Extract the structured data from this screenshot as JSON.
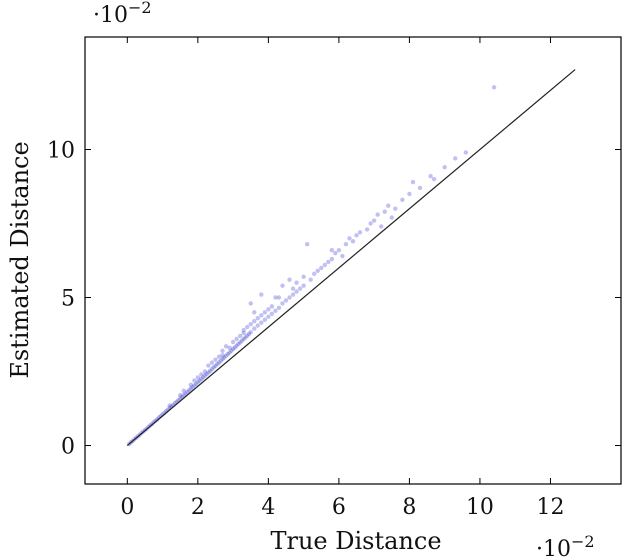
{
  "chart_data": {
    "type": "scatter",
    "xlabel": "True Distance",
    "ylabel": "Estimated Distance",
    "x_scale_label": "·10",
    "y_scale_label": "·10",
    "scale_exponent": "−2",
    "xlim": [
      -1.2,
      14.0
    ],
    "ylim": [
      -1.3,
      13.8
    ],
    "x_ticks": [
      0,
      2,
      4,
      6,
      8,
      10,
      12
    ],
    "y_ticks": [
      0,
      5,
      10
    ],
    "grid": false,
    "colors": {
      "points": "#2222cc",
      "reference_line": "#222222",
      "axes": "#000000"
    },
    "reference_line": {
      "x": [
        0,
        12.7
      ],
      "y": [
        0,
        12.7
      ]
    },
    "series": [
      {
        "values": [
          [
            0.05,
            0.05
          ],
          [
            0.1,
            0.11
          ],
          [
            0.15,
            0.15
          ],
          [
            0.2,
            0.21
          ],
          [
            0.25,
            0.26
          ],
          [
            0.3,
            0.31
          ],
          [
            0.35,
            0.36
          ],
          [
            0.4,
            0.42
          ],
          [
            0.45,
            0.47
          ],
          [
            0.5,
            0.52
          ],
          [
            0.55,
            0.57
          ],
          [
            0.6,
            0.63
          ],
          [
            0.65,
            0.68
          ],
          [
            0.7,
            0.73
          ],
          [
            0.75,
            0.79
          ],
          [
            0.8,
            0.84
          ],
          [
            0.85,
            0.89
          ],
          [
            0.9,
            0.95
          ],
          [
            0.95,
            1.0
          ],
          [
            1.0,
            1.05
          ],
          [
            1.05,
            1.1
          ],
          [
            1.1,
            1.16
          ],
          [
            1.15,
            1.21
          ],
          [
            1.2,
            1.27
          ],
          [
            1.25,
            1.32
          ],
          [
            1.3,
            1.37
          ],
          [
            1.35,
            1.43
          ],
          [
            1.4,
            1.48
          ],
          [
            1.45,
            1.53
          ],
          [
            1.5,
            1.59
          ],
          [
            1.55,
            1.64
          ],
          [
            1.6,
            1.7
          ],
          [
            1.65,
            1.75
          ],
          [
            1.7,
            1.81
          ],
          [
            1.75,
            1.86
          ],
          [
            1.8,
            1.92
          ],
          [
            1.85,
            1.97
          ],
          [
            1.9,
            2.03
          ],
          [
            1.95,
            2.08
          ],
          [
            2.0,
            2.14
          ],
          [
            2.05,
            2.19
          ],
          [
            2.1,
            2.25
          ],
          [
            2.15,
            2.3
          ],
          [
            2.2,
            2.36
          ],
          [
            2.25,
            2.41
          ],
          [
            2.3,
            2.47
          ],
          [
            2.35,
            2.52
          ],
          [
            2.4,
            2.58
          ],
          [
            2.45,
            2.64
          ],
          [
            2.5,
            2.69
          ],
          [
            2.55,
            2.75
          ],
          [
            2.6,
            2.8
          ],
          [
            2.65,
            2.86
          ],
          [
            2.7,
            2.92
          ],
          [
            2.75,
            2.97
          ],
          [
            2.8,
            3.03
          ],
          [
            2.85,
            3.09
          ],
          [
            2.9,
            3.14
          ],
          [
            2.95,
            3.2
          ],
          [
            3.0,
            3.26
          ],
          [
            3.05,
            3.31
          ],
          [
            3.1,
            3.37
          ],
          [
            3.15,
            3.43
          ],
          [
            3.2,
            3.48
          ],
          [
            3.25,
            3.54
          ],
          [
            3.3,
            3.6
          ],
          [
            3.35,
            3.65
          ],
          [
            3.4,
            3.71
          ],
          [
            3.45,
            3.77
          ],
          [
            3.5,
            3.83
          ],
          [
            1.2,
            1.35
          ],
          [
            1.5,
            1.7
          ],
          [
            1.8,
            2.05
          ],
          [
            2.1,
            2.4
          ],
          [
            2.3,
            2.7
          ],
          [
            2.5,
            2.9
          ],
          [
            2.7,
            3.2
          ],
          [
            2.8,
            3.35
          ],
          [
            3.0,
            3.5
          ],
          [
            3.2,
            3.7
          ],
          [
            3.4,
            4.0
          ],
          [
            3.5,
            4.1
          ],
          [
            3.6,
            4.2
          ],
          [
            3.7,
            4.3
          ],
          [
            3.8,
            4.4
          ],
          [
            3.9,
            4.5
          ],
          [
            4.0,
            4.6
          ],
          [
            4.1,
            4.7
          ],
          [
            3.6,
            3.95
          ],
          [
            3.7,
            4.05
          ],
          [
            3.8,
            4.15
          ],
          [
            3.9,
            4.25
          ],
          [
            4.0,
            4.35
          ],
          [
            4.1,
            4.45
          ],
          [
            4.2,
            4.55
          ],
          [
            4.3,
            4.65
          ],
          [
            4.4,
            4.8
          ],
          [
            4.5,
            4.9
          ],
          [
            4.6,
            5.0
          ],
          [
            4.7,
            5.1
          ],
          [
            4.8,
            5.2
          ],
          [
            4.9,
            5.3
          ],
          [
            5.0,
            5.4
          ],
          [
            3.5,
            4.8
          ],
          [
            3.8,
            5.1
          ],
          [
            4.2,
            5.0
          ],
          [
            4.4,
            5.4
          ],
          [
            4.6,
            5.6
          ],
          [
            4.8,
            5.5
          ],
          [
            5.0,
            5.7
          ],
          [
            5.1,
            6.8
          ],
          [
            5.2,
            5.6
          ],
          [
            5.4,
            5.9
          ],
          [
            5.5,
            6.0
          ],
          [
            5.6,
            6.1
          ],
          [
            5.7,
            6.2
          ],
          [
            5.8,
            6.3
          ],
          [
            5.9,
            6.5
          ],
          [
            6.0,
            6.6
          ],
          [
            6.1,
            6.4
          ],
          [
            6.2,
            6.8
          ],
          [
            6.3,
            7.0
          ],
          [
            6.4,
            6.9
          ],
          [
            6.5,
            7.1
          ],
          [
            6.6,
            7.2
          ],
          [
            6.8,
            7.3
          ],
          [
            6.9,
            7.5
          ],
          [
            7.0,
            7.6
          ],
          [
            7.1,
            7.8
          ],
          [
            7.2,
            7.4
          ],
          [
            7.3,
            7.9
          ],
          [
            7.4,
            8.1
          ],
          [
            7.5,
            7.7
          ],
          [
            7.6,
            8.0
          ],
          [
            7.8,
            8.3
          ],
          [
            8.0,
            8.5
          ],
          [
            8.1,
            8.9
          ],
          [
            8.3,
            8.7
          ],
          [
            8.6,
            9.1
          ],
          [
            8.7,
            9.0
          ],
          [
            9.0,
            9.4
          ],
          [
            9.3,
            9.7
          ],
          [
            9.6,
            9.9
          ],
          [
            10.4,
            12.1
          ],
          [
            2.2,
            2.5
          ],
          [
            2.4,
            2.8
          ],
          [
            2.6,
            3.0
          ],
          [
            2.9,
            3.3
          ],
          [
            3.1,
            3.6
          ],
          [
            3.3,
            3.8
          ],
          [
            1.6,
            1.85
          ],
          [
            1.9,
            2.2
          ],
          [
            2.0,
            2.3
          ],
          [
            2.7,
            3.05
          ],
          [
            3.3,
            3.9
          ],
          [
            3.6,
            4.5
          ],
          [
            4.3,
            5.0
          ],
          [
            4.7,
            5.3
          ],
          [
            5.3,
            5.8
          ],
          [
            5.8,
            6.6
          ]
        ]
      }
    ]
  }
}
